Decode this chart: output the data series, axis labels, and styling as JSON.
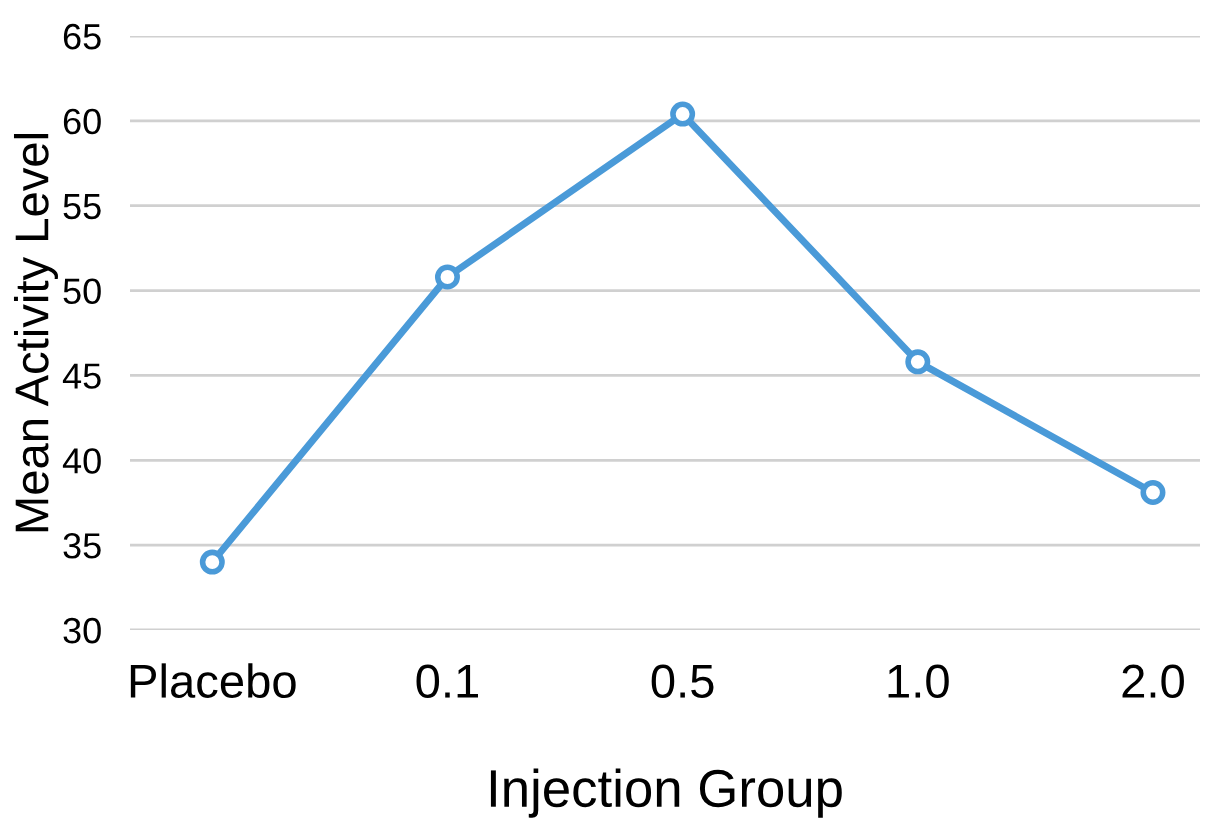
{
  "chart_data": {
    "type": "line",
    "xlabel": "Injection Group",
    "ylabel": "Mean Activity Level",
    "categories": [
      "Placebo",
      "0.1",
      "0.5",
      "1.0",
      "2.0"
    ],
    "series": [
      {
        "color": "#4a9ad8",
        "values": [
          34.0,
          50.8,
          60.4,
          45.8,
          38.1
        ]
      }
    ],
    "ylim": [
      30,
      65
    ],
    "yticks": [
      30,
      35,
      40,
      45,
      50,
      55,
      60,
      65
    ],
    "grid": "y",
    "marker": "circle",
    "line_style": "solid"
  }
}
